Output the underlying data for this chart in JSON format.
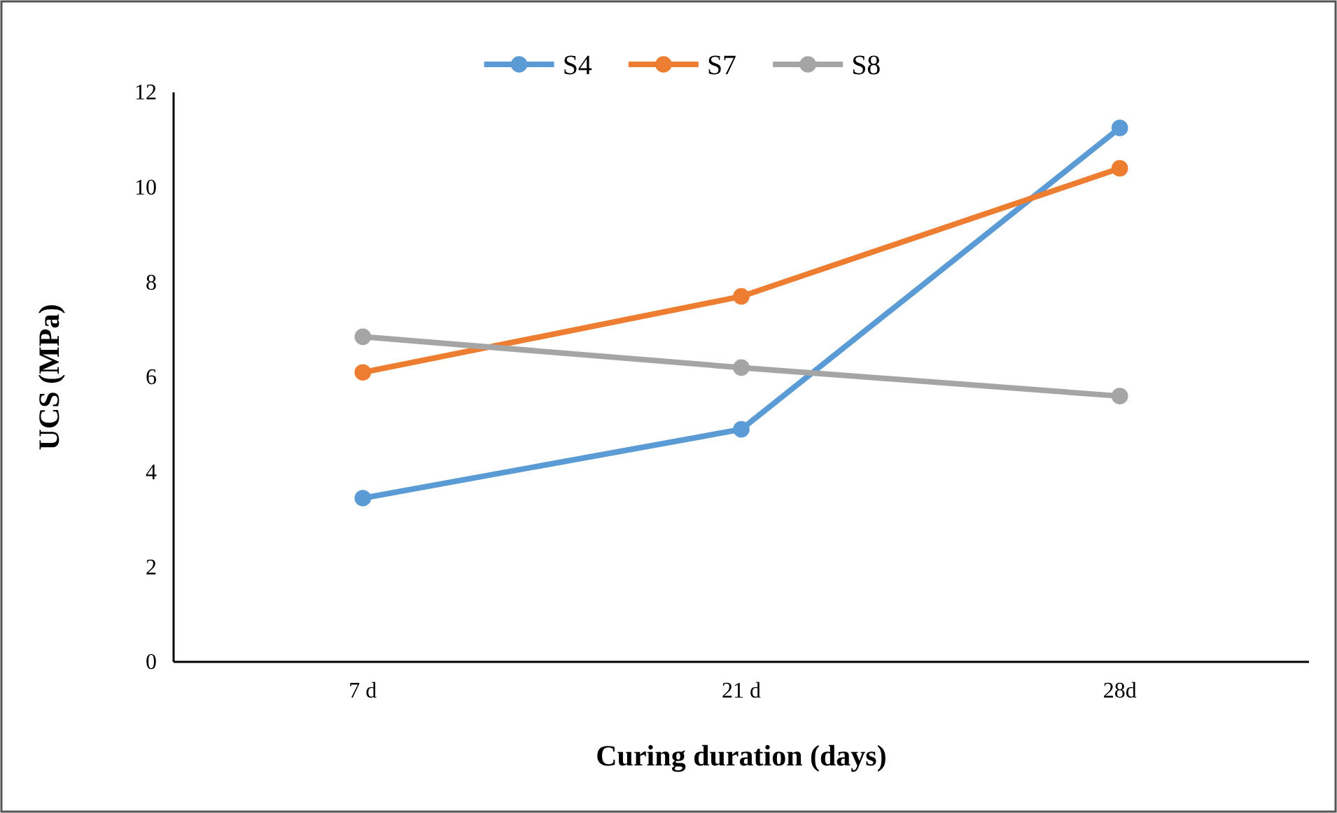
{
  "chart_data": {
    "type": "line",
    "xlabel": "Curing duration (days)",
    "ylabel": "UCS (MPa)",
    "categories": [
      "7 d",
      "21 d",
      "28d"
    ],
    "series": [
      {
        "name": "S4",
        "color": "#5b9bd5",
        "values": [
          3.45,
          4.9,
          11.25
        ]
      },
      {
        "name": "S7",
        "color": "#ed7d31",
        "values": [
          6.1,
          7.7,
          10.4
        ]
      },
      {
        "name": "S8",
        "color": "#a5a5a5",
        "values": [
          6.85,
          6.2,
          5.6
        ]
      }
    ],
    "ylim": [
      0,
      12
    ],
    "yticks": [
      0,
      2,
      4,
      6,
      8,
      10,
      12
    ],
    "grid": false,
    "legend": "top",
    "marker": "circle",
    "line_style": "solid"
  }
}
